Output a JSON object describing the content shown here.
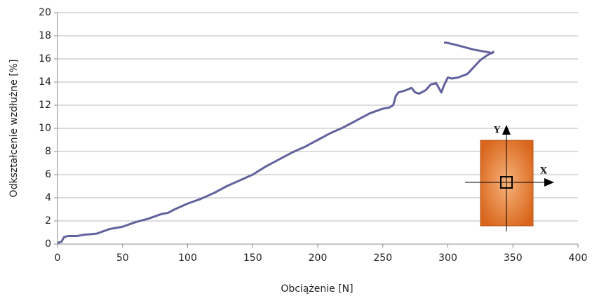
{
  "chart_data": {
    "type": "line",
    "x_label": "Obciążenie [N]",
    "y_label": "Odkształcenie wzdłużne [%]",
    "xlim": [
      0,
      400
    ],
    "xticks": [
      0,
      50,
      100,
      150,
      200,
      250,
      300,
      350,
      400
    ],
    "ylim": [
      0,
      20
    ],
    "yticks": [
      0,
      2,
      4,
      6,
      8,
      10,
      12,
      14,
      16,
      18,
      20
    ],
    "grid": true,
    "series": [
      {
        "color": "#62629e",
        "x": [
          0,
          3,
          5,
          8,
          15,
          20,
          30,
          35,
          40,
          45,
          50,
          60,
          70,
          80,
          85,
          90,
          100,
          110,
          120,
          130,
          140,
          150,
          160,
          170,
          180,
          190,
          200,
          210,
          220,
          230,
          240,
          250,
          255,
          258,
          260,
          262,
          268,
          272,
          275,
          278,
          283,
          287,
          291,
          293,
          295,
          297,
          300,
          303,
          308,
          315,
          320,
          325,
          330,
          335,
          334,
          330,
          320,
          310,
          303,
          299,
          297
        ],
        "values": [
          0.1,
          0.2,
          0.6,
          0.7,
          0.7,
          0.8,
          0.9,
          1.1,
          1.3,
          1.4,
          1.5,
          1.9,
          2.2,
          2.6,
          2.7,
          3.0,
          3.5,
          3.9,
          4.4,
          5.0,
          5.5,
          6.0,
          6.7,
          7.3,
          7.9,
          8.4,
          9.0,
          9.6,
          10.1,
          10.7,
          11.3,
          11.7,
          11.8,
          12.0,
          12.8,
          13.1,
          13.3,
          13.5,
          13.1,
          13.0,
          13.3,
          13.8,
          13.9,
          13.5,
          13.1,
          13.7,
          14.4,
          14.3,
          14.4,
          14.7,
          15.3,
          15.9,
          16.3,
          16.6,
          16.5,
          16.6,
          16.8,
          17.1,
          17.3,
          17.4,
          17.4
        ]
      }
    ],
    "inset_labels": {
      "y": "Y",
      "x": "X"
    }
  }
}
